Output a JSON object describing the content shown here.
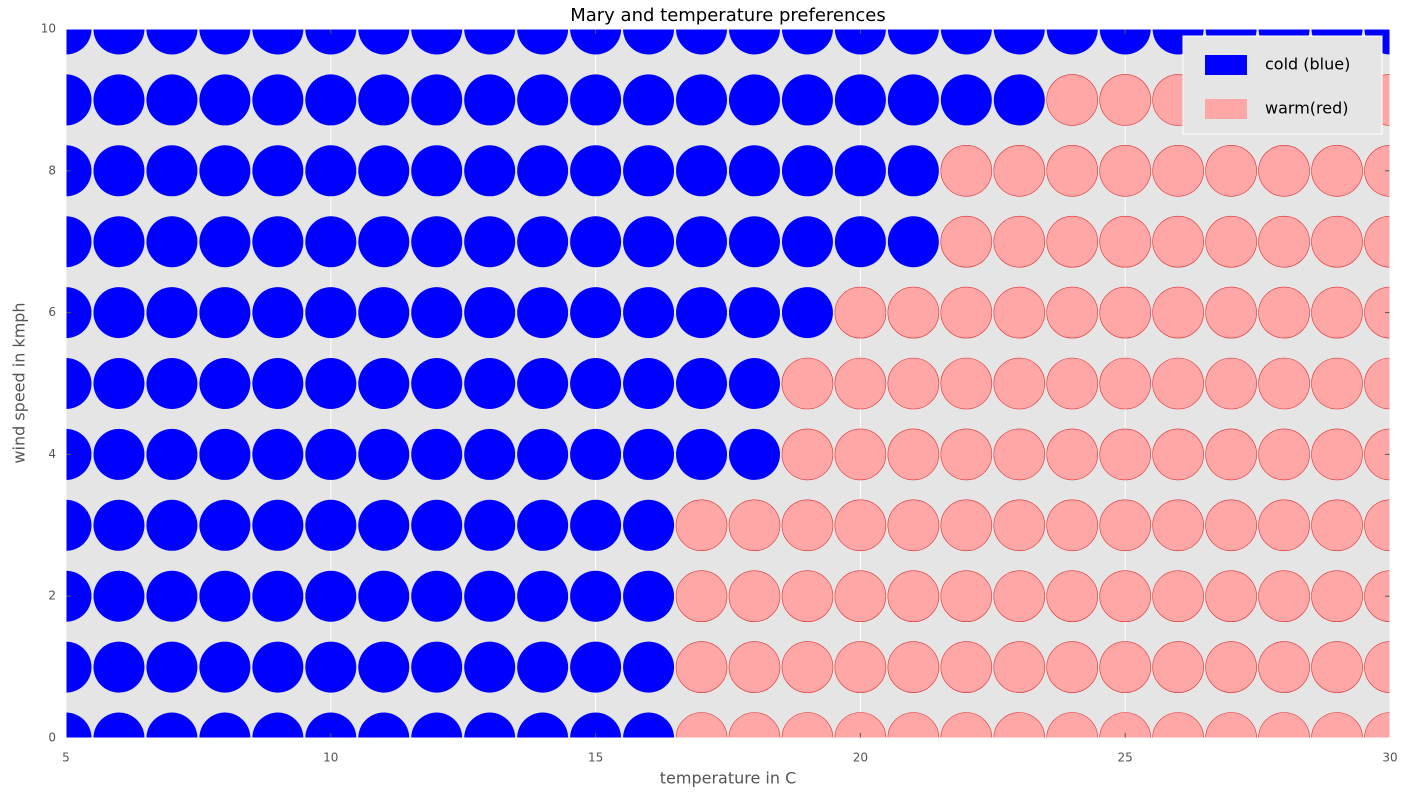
{
  "chart_data": {
    "type": "scatter",
    "title": "Mary and temperature preferences",
    "x_label": "temperature in C",
    "y_label": "wind speed in kmph",
    "xlim": [
      5,
      30
    ],
    "ylim": [
      0,
      10
    ],
    "xticks": [
      5,
      10,
      15,
      20,
      25,
      30
    ],
    "yticks": [
      0,
      2,
      4,
      6,
      8,
      10
    ],
    "grid": true,
    "legend_loc": "upper right",
    "series": [
      {
        "name": "cold (blue)",
        "color": "#0000ff",
        "x": [
          5,
          6,
          7,
          8,
          9,
          10,
          11,
          12,
          13,
          14,
          15,
          16,
          5,
          6,
          7,
          8,
          9,
          10,
          11,
          12,
          13,
          14,
          15,
          16,
          5,
          6,
          7,
          8,
          9,
          10,
          11,
          12,
          13,
          14,
          15,
          16,
          5,
          6,
          7,
          8,
          9,
          10,
          11,
          12,
          13,
          14,
          15,
          16,
          5,
          6,
          7,
          8,
          9,
          10,
          11,
          12,
          13,
          14,
          15,
          16,
          17,
          18,
          5,
          6,
          7,
          8,
          9,
          10,
          11,
          12,
          13,
          14,
          15,
          16,
          17,
          18,
          5,
          6,
          7,
          8,
          9,
          10,
          11,
          12,
          13,
          14,
          15,
          16,
          17,
          18,
          19,
          5,
          6,
          7,
          8,
          9,
          10,
          11,
          12,
          13,
          14,
          15,
          16,
          17,
          18,
          19,
          20,
          21,
          5,
          6,
          7,
          8,
          9,
          10,
          11,
          12,
          13,
          14,
          15,
          16,
          17,
          18,
          19,
          20,
          21,
          5,
          6,
          7,
          8,
          9,
          10,
          11,
          12,
          13,
          14,
          15,
          16,
          17,
          18,
          19,
          20,
          21,
          22,
          23,
          5,
          6,
          7,
          8,
          9,
          10,
          11,
          12,
          13,
          14,
          15,
          16,
          17,
          18,
          19,
          20,
          21,
          22,
          23,
          24,
          25,
          26,
          27,
          28,
          29,
          30
        ],
        "y": [
          0,
          0,
          0,
          0,
          0,
          0,
          0,
          0,
          0,
          0,
          0,
          0,
          1,
          1,
          1,
          1,
          1,
          1,
          1,
          1,
          1,
          1,
          1,
          1,
          2,
          2,
          2,
          2,
          2,
          2,
          2,
          2,
          2,
          2,
          2,
          2,
          3,
          3,
          3,
          3,
          3,
          3,
          3,
          3,
          3,
          3,
          3,
          3,
          4,
          4,
          4,
          4,
          4,
          4,
          4,
          4,
          4,
          4,
          4,
          4,
          4,
          4,
          5,
          5,
          5,
          5,
          5,
          5,
          5,
          5,
          5,
          5,
          5,
          5,
          5,
          5,
          6,
          6,
          6,
          6,
          6,
          6,
          6,
          6,
          6,
          6,
          6,
          6,
          6,
          6,
          6,
          7,
          7,
          7,
          7,
          7,
          7,
          7,
          7,
          7,
          7,
          7,
          7,
          7,
          7,
          7,
          7,
          7,
          8,
          8,
          8,
          8,
          8,
          8,
          8,
          8,
          8,
          8,
          8,
          8,
          8,
          8,
          8,
          8,
          8,
          9,
          9,
          9,
          9,
          9,
          9,
          9,
          9,
          9,
          9,
          9,
          9,
          9,
          9,
          9,
          9,
          9,
          9,
          9,
          10,
          10,
          10,
          10,
          10,
          10,
          10,
          10,
          10,
          10,
          10,
          10,
          10,
          10,
          10,
          10,
          10,
          10,
          10,
          10,
          10,
          10,
          10,
          10,
          10,
          10
        ]
      },
      {
        "name": "warm(red)",
        "color": "#ffa6a6",
        "x": [
          17,
          18,
          19,
          20,
          21,
          22,
          23,
          24,
          25,
          26,
          27,
          28,
          29,
          30,
          17,
          18,
          19,
          20,
          21,
          22,
          23,
          24,
          25,
          26,
          27,
          28,
          29,
          30,
          17,
          18,
          19,
          20,
          21,
          22,
          23,
          24,
          25,
          26,
          27,
          28,
          29,
          30,
          17,
          18,
          19,
          20,
          21,
          22,
          23,
          24,
          25,
          26,
          27,
          28,
          29,
          30,
          19,
          20,
          21,
          22,
          23,
          24,
          25,
          26,
          27,
          28,
          29,
          30,
          19,
          20,
          21,
          22,
          23,
          24,
          25,
          26,
          27,
          28,
          29,
          30,
          20,
          21,
          22,
          23,
          24,
          25,
          26,
          27,
          28,
          29,
          30,
          22,
          23,
          24,
          25,
          26,
          27,
          28,
          29,
          30,
          22,
          23,
          24,
          25,
          26,
          27,
          28,
          29,
          30,
          24,
          25,
          26,
          27,
          28,
          29,
          30
        ],
        "y": [
          0,
          0,
          0,
          0,
          0,
          0,
          0,
          0,
          0,
          0,
          0,
          0,
          0,
          0,
          1,
          1,
          1,
          1,
          1,
          1,
          1,
          1,
          1,
          1,
          1,
          1,
          1,
          1,
          2,
          2,
          2,
          2,
          2,
          2,
          2,
          2,
          2,
          2,
          2,
          2,
          2,
          2,
          3,
          3,
          3,
          3,
          3,
          3,
          3,
          3,
          3,
          3,
          3,
          3,
          3,
          3,
          4,
          4,
          4,
          4,
          4,
          4,
          4,
          4,
          4,
          4,
          4,
          4,
          5,
          5,
          5,
          5,
          5,
          5,
          5,
          5,
          5,
          5,
          5,
          5,
          6,
          6,
          6,
          6,
          6,
          6,
          6,
          6,
          6,
          6,
          6,
          7,
          7,
          7,
          7,
          7,
          7,
          7,
          7,
          7,
          8,
          8,
          8,
          8,
          8,
          8,
          8,
          8,
          8,
          9,
          9,
          9,
          9,
          9,
          9,
          9
        ]
      }
    ]
  }
}
